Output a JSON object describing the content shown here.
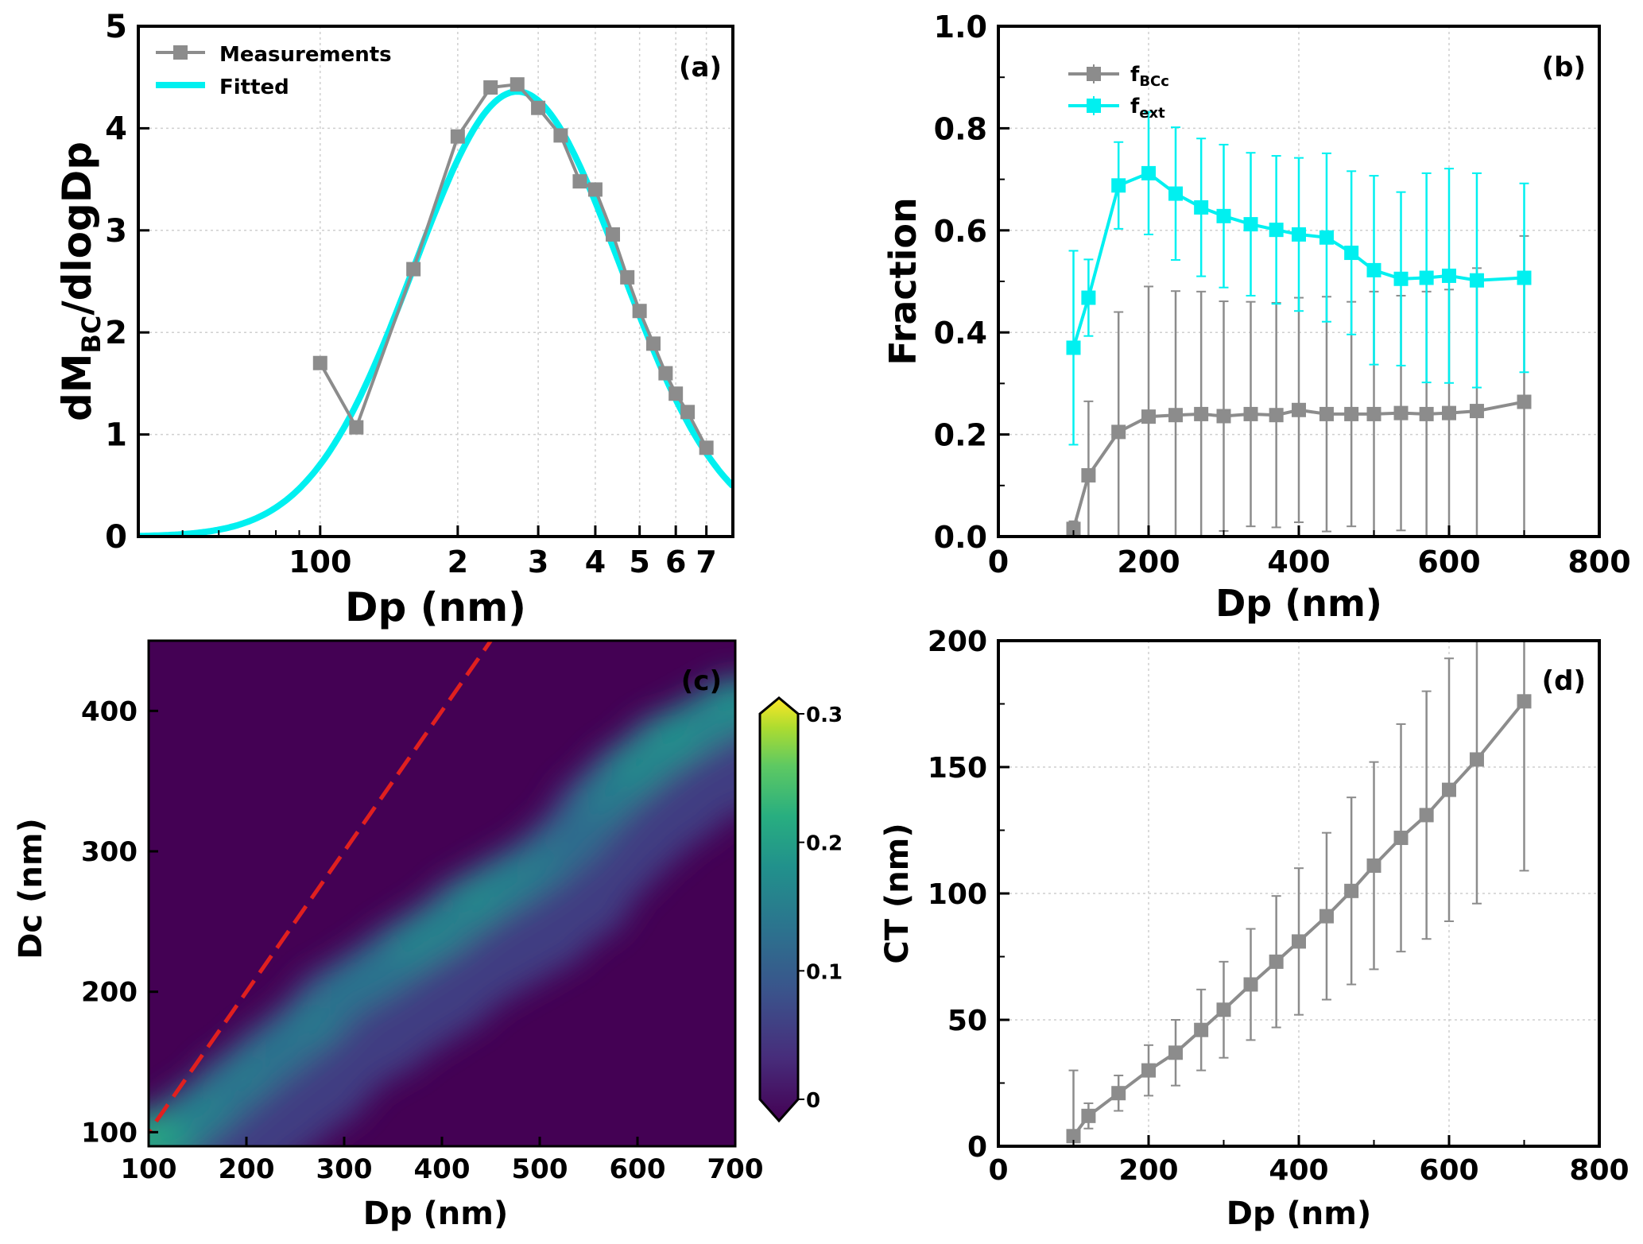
{
  "colors": {
    "gray": "#8c8c8c",
    "cyan": "#00f0f0",
    "red": "#e0201f",
    "viridis_low": "#440154",
    "viridis_high": "#fde725"
  },
  "chart_data": [
    {
      "panel": "(a)",
      "type": "line",
      "xscale": "log",
      "xlabel": "Dp (nm)",
      "ylabel_main": "dM",
      "ylabel_sub": "BC",
      "ylabel_tail": "/dlogDp",
      "xlim": [
        40,
        800
      ],
      "ylim": [
        0,
        5
      ],
      "xticks": [
        100,
        200,
        300,
        400,
        500,
        600,
        700
      ],
      "xtick_labels": [
        "100",
        "2",
        "3",
        "4",
        "5",
        "6",
        "7"
      ],
      "yticks": [
        0,
        1,
        2,
        3,
        4,
        5
      ],
      "ytick_labels": [
        "0",
        "1",
        "2",
        "3",
        "4",
        "5"
      ],
      "grid": true,
      "legend_position": "top-left",
      "series": [
        {
          "name": "Measurements",
          "color": "#8c8c8c",
          "marker": "square",
          "x": [
            100,
            120,
            160,
            200,
            236,
            270,
            300,
            336,
            370,
            400,
            437,
            470,
            500,
            536,
            570,
            600,
            637,
            700
          ],
          "y": [
            1.7,
            1.07,
            2.62,
            3.92,
            4.4,
            4.43,
            4.2,
            3.93,
            3.48,
            3.4,
            2.96,
            2.54,
            2.21,
            1.89,
            1.6,
            1.4,
            1.22,
            0.87
          ]
        },
        {
          "name": "Fitted",
          "color": "#00f0f0",
          "marker": "none",
          "fit": {
            "peak": 4.36,
            "mode": 270,
            "sigma_log10": 0.226
          }
        }
      ]
    },
    {
      "panel": "(b)",
      "type": "line",
      "xlabel": "Dp (nm)",
      "ylabel": "Fraction",
      "xlim": [
        0,
        800
      ],
      "ylim": [
        0,
        1.0
      ],
      "xticks": [
        0,
        200,
        400,
        600,
        800
      ],
      "xtick_labels": [
        "0",
        "200",
        "400",
        "600",
        "800"
      ],
      "yticks": [
        0,
        0.2,
        0.4,
        0.6,
        0.8,
        1.0
      ],
      "ytick_labels": [
        "0.0",
        "0.2",
        "0.4",
        "0.6",
        "0.8",
        "1.0"
      ],
      "grid": true,
      "legend_position": "top-left",
      "x": [
        100,
        120,
        160,
        200,
        236,
        270,
        300,
        336,
        370,
        400,
        437,
        470,
        500,
        536,
        570,
        600,
        637,
        700
      ],
      "series": [
        {
          "name_main": "f",
          "name_sub": "BCc",
          "color": "#8c8c8c",
          "y": [
            0.015,
            0.12,
            0.205,
            0.235,
            0.238,
            0.24,
            0.236,
            0.24,
            0.238,
            0.248,
            0.24,
            0.24,
            0.24,
            0.242,
            0.24,
            0.242,
            0.246,
            0.264
          ],
          "err": [
            0.015,
            0.145,
            0.235,
            0.255,
            0.243,
            0.24,
            0.225,
            0.22,
            0.22,
            0.22,
            0.23,
            0.22,
            0.24,
            0.23,
            0.24,
            0.242,
            0.28,
            0.325
          ]
        },
        {
          "name_main": "f",
          "name_sub": "ext",
          "color": "#00f0f0",
          "y": [
            0.37,
            0.468,
            0.688,
            0.712,
            0.672,
            0.645,
            0.628,
            0.612,
            0.601,
            0.592,
            0.586,
            0.556,
            0.522,
            0.505,
            0.507,
            0.511,
            0.502,
            0.507
          ],
          "err": [
            0.19,
            0.075,
            0.085,
            0.12,
            0.13,
            0.135,
            0.14,
            0.14,
            0.145,
            0.15,
            0.165,
            0.16,
            0.185,
            0.17,
            0.205,
            0.21,
            0.21,
            0.185
          ]
        }
      ]
    },
    {
      "panel": "(c)",
      "type": "heatmap",
      "xlabel": "Dp (nm)",
      "ylabel": "Dc (nm)",
      "xlim": [
        100,
        700
      ],
      "ylim": [
        90,
        450
      ],
      "xticks": [
        100,
        200,
        300,
        400,
        500,
        600,
        700
      ],
      "xtick_labels": [
        "100",
        "200",
        "300",
        "400",
        "500",
        "600",
        "700"
      ],
      "yticks": [
        100,
        200,
        300,
        400
      ],
      "ytick_labels": [
        "100",
        "200",
        "300",
        "400"
      ],
      "colorbar_range": [
        0,
        0.3
      ],
      "colorbar_ticks": [
        0,
        0.1,
        0.2,
        0.3
      ],
      "colorbar_tick_labels": [
        "0",
        "0.1",
        "0.2",
        "0.3"
      ],
      "ridge": {
        "dp": [
          100,
          120,
          160,
          200,
          236,
          270,
          300,
          336,
          370,
          400,
          437,
          470,
          500,
          536,
          570,
          600,
          637,
          700
        ],
        "dc": [
          96,
          96,
          117,
          140,
          160,
          178,
          200,
          215,
          232,
          245,
          265,
          278,
          290,
          310,
          340,
          360,
          380,
          405
        ],
        "intensity": [
          0.22,
          0.2,
          0.16,
          0.15,
          0.14,
          0.15,
          0.14,
          0.14,
          0.16,
          0.16,
          0.17,
          0.16,
          0.15,
          0.13,
          0.15,
          0.17,
          0.18,
          0.18
        ]
      },
      "reference_line": {
        "label": "1:1",
        "color": "#e0201f",
        "style": "dashed"
      }
    },
    {
      "panel": "(d)",
      "type": "line",
      "xlabel": "Dp (nm)",
      "ylabel": "CT (nm)",
      "xlim": [
        0,
        800
      ],
      "ylim": [
        0,
        200
      ],
      "xticks": [
        0,
        200,
        400,
        600,
        800
      ],
      "xtick_labels": [
        "0",
        "200",
        "400",
        "600",
        "800"
      ],
      "yticks": [
        0,
        50,
        100,
        150,
        200
      ],
      "ytick_labels": [
        "0",
        "50",
        "100",
        "150",
        "200"
      ],
      "grid": true,
      "series": [
        {
          "color": "#8c8c8c",
          "x": [
            100,
            120,
            160,
            200,
            236,
            270,
            300,
            336,
            370,
            400,
            437,
            470,
            500,
            536,
            570,
            600,
            637,
            700
          ],
          "y": [
            4,
            12,
            21,
            30,
            37,
            46,
            54,
            64,
            73,
            81,
            91,
            101,
            111,
            122,
            131,
            141,
            153,
            176
          ],
          "err": [
            26,
            5,
            7,
            10,
            13,
            16,
            19,
            22,
            26,
            29,
            33,
            37,
            41,
            45,
            49,
            52,
            57,
            67
          ]
        }
      ]
    }
  ]
}
